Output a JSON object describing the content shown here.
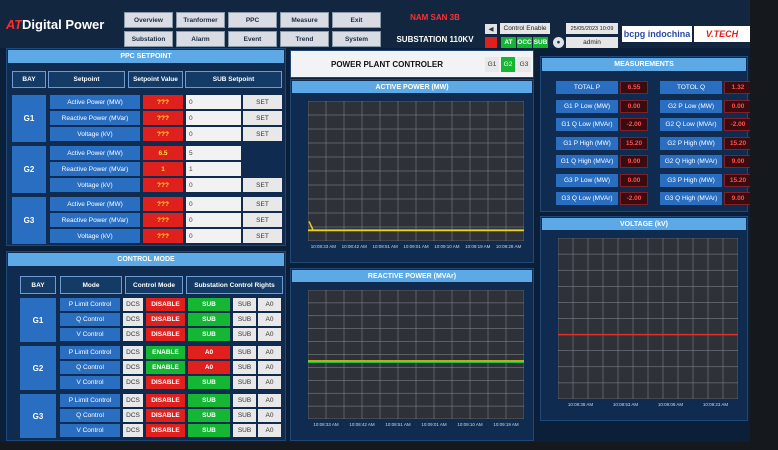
{
  "header": {
    "brand_prefix": "AT",
    "brand": "Digital Power",
    "nav": [
      "Overview",
      "Tranformer",
      "PPC",
      "Measure",
      "Exit",
      "Substation",
      "Alarm",
      "Event",
      "Trend",
      "System"
    ],
    "site": "NAM SAN 3B",
    "substation": "SUBSTATION 110KV",
    "control_enable": "Control Enable",
    "datetime": "25/05/2023 10:09",
    "modes": [
      "AT",
      "OCC",
      "SUB"
    ],
    "user": "admin",
    "partner": "bcpg indochina",
    "partner2": "V.TECH"
  },
  "ppc_setpoint": {
    "title": "PPC SETPOINT",
    "columns": [
      "BAY",
      "Setpoint",
      "Setpoint Value",
      "SUB Setpoint"
    ],
    "bays": [
      {
        "bay": "G1",
        "rows": [
          {
            "setpoint": "Active Power (MW)",
            "value": "???",
            "sub": "0",
            "action": "SET"
          },
          {
            "setpoint": "Reactive Power (MVar)",
            "value": "???",
            "sub": "0",
            "action": "SET"
          },
          {
            "setpoint": "Voltage (kV)",
            "value": "???",
            "sub": "0",
            "action": "SET"
          }
        ]
      },
      {
        "bay": "G2",
        "rows": [
          {
            "setpoint": "Active Power (MW)",
            "value": "6.5",
            "sub": "5"
          },
          {
            "setpoint": "Reactive Power (MVar)",
            "value": "1",
            "sub": "1"
          },
          {
            "setpoint": "Voltage (kV)",
            "value": "???",
            "sub": "0",
            "action": "SET"
          }
        ]
      },
      {
        "bay": "G3",
        "rows": [
          {
            "setpoint": "Active Power (MW)",
            "value": "???",
            "sub": "0",
            "action": "SET"
          },
          {
            "setpoint": "Reactive Power (MVar)",
            "value": "???",
            "sub": "0",
            "action": "SET"
          },
          {
            "setpoint": "Voltage (kV)",
            "value": "???",
            "sub": "0",
            "action": "SET"
          }
        ]
      }
    ]
  },
  "control_mode": {
    "title": "CONTROL MODE",
    "columns": [
      "BAY",
      "Mode",
      "Control Mode",
      "Substation Control Rights"
    ],
    "bays": [
      {
        "bay": "G1",
        "rows": [
          {
            "mode": "P Limit Control",
            "source": "DCS",
            "state": "DISABLE",
            "control": "SUB",
            "rights": [
              "SUB",
              "A0"
            ]
          },
          {
            "mode": "Q Control",
            "source": "DCS",
            "state": "DISABLE",
            "control": "SUB",
            "rights": [
              "SUB",
              "A0"
            ]
          },
          {
            "mode": "V Control",
            "source": "DCS",
            "state": "DISABLE",
            "control": "SUB",
            "rights": [
              "SUB",
              "A0"
            ]
          }
        ]
      },
      {
        "bay": "G2",
        "rows": [
          {
            "mode": "P Limit Control",
            "source": "DCS",
            "state": "ENABLE",
            "control": "A0",
            "rights": [
              "SUB",
              "A0"
            ]
          },
          {
            "mode": "Q Control",
            "source": "DCS",
            "state": "ENABLE",
            "control": "A0",
            "rights": [
              "SUB",
              "A0"
            ]
          },
          {
            "mode": "V Control",
            "source": "DCS",
            "state": "DISABLE",
            "control": "SUB",
            "rights": [
              "SUB",
              "A0"
            ]
          }
        ]
      },
      {
        "bay": "G3",
        "rows": [
          {
            "mode": "P Limit Control",
            "source": "DCS",
            "state": "DISABLE",
            "control": "SUB",
            "rights": [
              "SUB",
              "A0"
            ]
          },
          {
            "mode": "Q Control",
            "source": "DCS",
            "state": "DISABLE",
            "control": "SUB",
            "rights": [
              "SUB",
              "A0"
            ]
          },
          {
            "mode": "V Control",
            "source": "DCS",
            "state": "DISABLE",
            "control": "SUB",
            "rights": [
              "SUB",
              "A0"
            ]
          }
        ]
      }
    ]
  },
  "plant": {
    "title": "POWER PLANT CONTROLER",
    "units": [
      "G1",
      "G2",
      "G3"
    ],
    "selected": "G2"
  },
  "charts": [
    {
      "title": "ACTIVE POWER (MW)",
      "x_labels": [
        "10:08:33 AM",
        "10:08:42 AM",
        "10:08:51 AM",
        "10:09:01 AM",
        "10:09:10 AM",
        "10:09:19 AM",
        "10:09:28 AM"
      ]
    },
    {
      "title": "REACTIVE POWER (MVAr)",
      "x_labels": [
        "10:08:33 AM",
        "10:08:42 AM",
        "10:08:51 AM",
        "10:09:01 AM",
        "10:09:10 AM",
        "10:09:19 AM"
      ]
    },
    {
      "title": "VOLTAGE (kV)",
      "x_labels": [
        "10:08:38 AM",
        "10:08:53 AM",
        "10:09:08 AM",
        "10:09:23 AM"
      ]
    }
  ],
  "measurements": {
    "title": "MEASUREMENTS",
    "items": [
      {
        "label": "TOTAL P",
        "value": "6.55"
      },
      {
        "label": "TOTOL Q",
        "value": "1.32"
      },
      {
        "label": "G1 P Low (MW)",
        "value": "0.00"
      },
      {
        "label": "G2 P Low (MW)",
        "value": "0.00"
      },
      {
        "label": "G1 Q Low (MVAr)",
        "value": "-2.00"
      },
      {
        "label": "G2 Q Low (MVAr)",
        "value": "-2.00"
      },
      {
        "label": "G1 P High (MW)",
        "value": "15.20"
      },
      {
        "label": "G2 P High (MW)",
        "value": "15.20"
      },
      {
        "label": "G1 Q High (MVAr)",
        "value": "9.00"
      },
      {
        "label": "G2 Q High (MVAr)",
        "value": "9.00"
      },
      {
        "label": "G3 P Low (MW)",
        "value": "0.00"
      },
      {
        "label": "G3 P High (MW)",
        "value": "15.20"
      },
      {
        "label": "G3 Q Low (MVAr)",
        "value": "-2.00"
      },
      {
        "label": "G3 Q High (MVAr)",
        "value": "9.00"
      }
    ]
  }
}
